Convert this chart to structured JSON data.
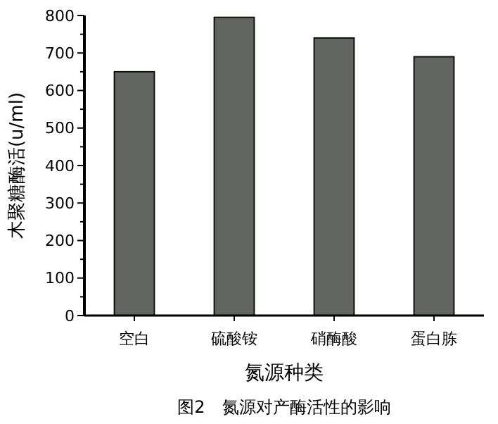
{
  "chart_data": {
    "type": "bar",
    "title": "图2　氮源对产酶活性的影响",
    "xlabel": "氮源种类",
    "ylabel": "木聚糖酶活(u/ml)",
    "categories": [
      "空白",
      "硫酸铵",
      "硝酶酸",
      "蛋白胨"
    ],
    "values": [
      650,
      795,
      740,
      690
    ],
    "color": "#636560",
    "ylim": [
      0,
      800
    ],
    "yticks": [
      0,
      {
        "value": 50,
        "label": null
      },
      100,
      {
        "value": 150,
        "label": null
      },
      200,
      {
        "value": 250,
        "label": null
      },
      300,
      {
        "value": 350,
        "label": null
      },
      400,
      {
        "value": 450,
        "label": null
      },
      500,
      {
        "value": 550,
        "label": null
      },
      600,
      {
        "value": 650,
        "label": null
      },
      700,
      {
        "value": 750,
        "label": null
      },
      800
    ],
    "grid": false
  }
}
